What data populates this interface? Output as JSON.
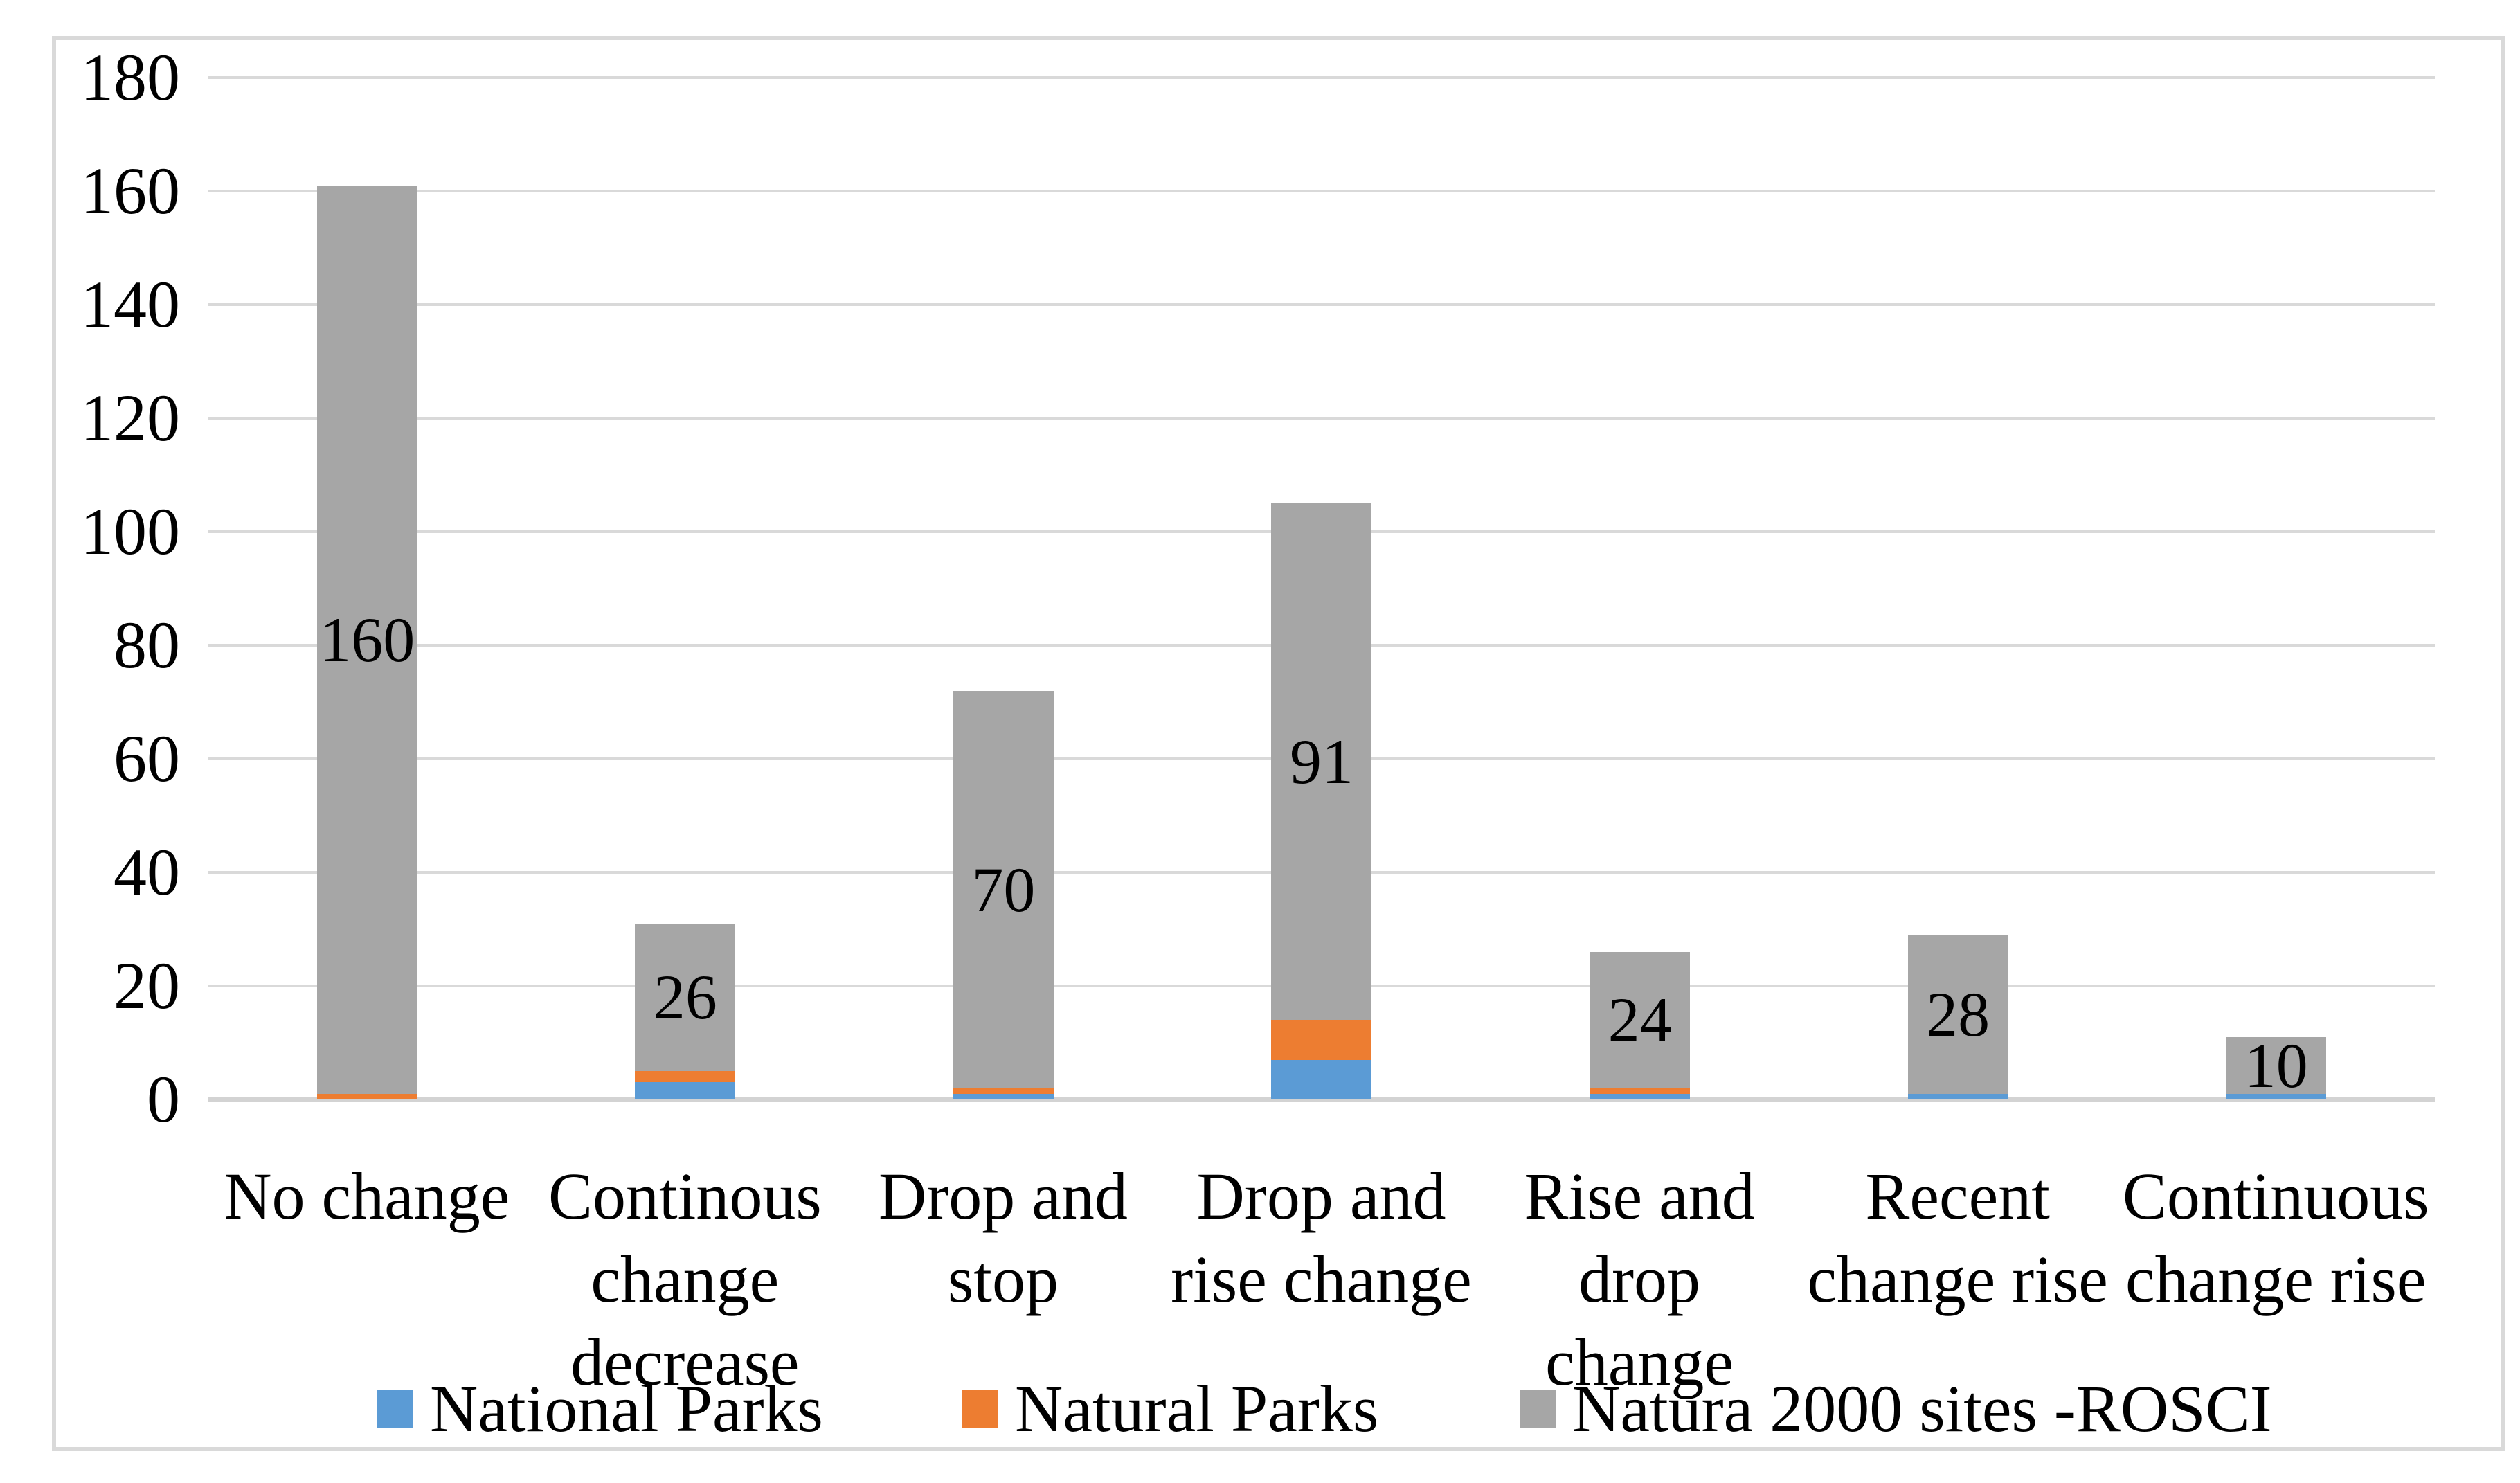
{
  "figure": {
    "background": "#FFFFFF",
    "border_color": "#D9D9D9"
  },
  "chart_data": {
    "type": "bar",
    "stacked": true,
    "title": "",
    "xlabel": "",
    "ylabel": "",
    "categories": [
      "No change",
      "Continous change decrease",
      "Drop and stop",
      "Drop and rise change",
      "Rise and drop change",
      "Recent change rise",
      "Continuous change rise"
    ],
    "category_label_lines": [
      [
        "No change"
      ],
      [
        "Continous",
        "change",
        "decrease"
      ],
      [
        "Drop and",
        "stop"
      ],
      [
        "Drop and",
        "rise change"
      ],
      [
        "Rise and",
        "drop",
        "change"
      ],
      [
        "Recent",
        "change rise"
      ],
      [
        "Continuous",
        "change rise"
      ]
    ],
    "series": [
      {
        "name": "National Parks",
        "color": "#5B9BD5",
        "values": [
          0,
          3,
          1,
          7,
          1,
          1,
          1
        ],
        "data_labels": null
      },
      {
        "name": "Natural Parks",
        "color": "#ED7D31",
        "values": [
          1,
          2,
          1,
          7,
          1,
          0,
          0
        ],
        "data_labels": null
      },
      {
        "name": "Natura 2000 sites -ROSCI",
        "color": "#A6A6A6",
        "values": [
          160,
          26,
          70,
          91,
          24,
          28,
          10
        ],
        "data_labels": [
          "160",
          "26",
          "70",
          "91",
          "24",
          "28",
          "10"
        ]
      }
    ],
    "stack_totals": [
      161,
      31,
      72,
      105,
      26,
      29,
      11
    ],
    "y_axis": {
      "min": 0,
      "max": 180,
      "step": 20,
      "tick_labels": [
        "0",
        "20",
        "40",
        "60",
        "80",
        "100",
        "120",
        "140",
        "160",
        "180"
      ]
    },
    "grid": true,
    "gridline_color": "#D9D9D9",
    "label_color": "#000000",
    "legend": {
      "position": "bottom",
      "items": [
        "National Parks",
        "Natural Parks",
        "Natura 2000 sites -ROSCI"
      ]
    }
  }
}
